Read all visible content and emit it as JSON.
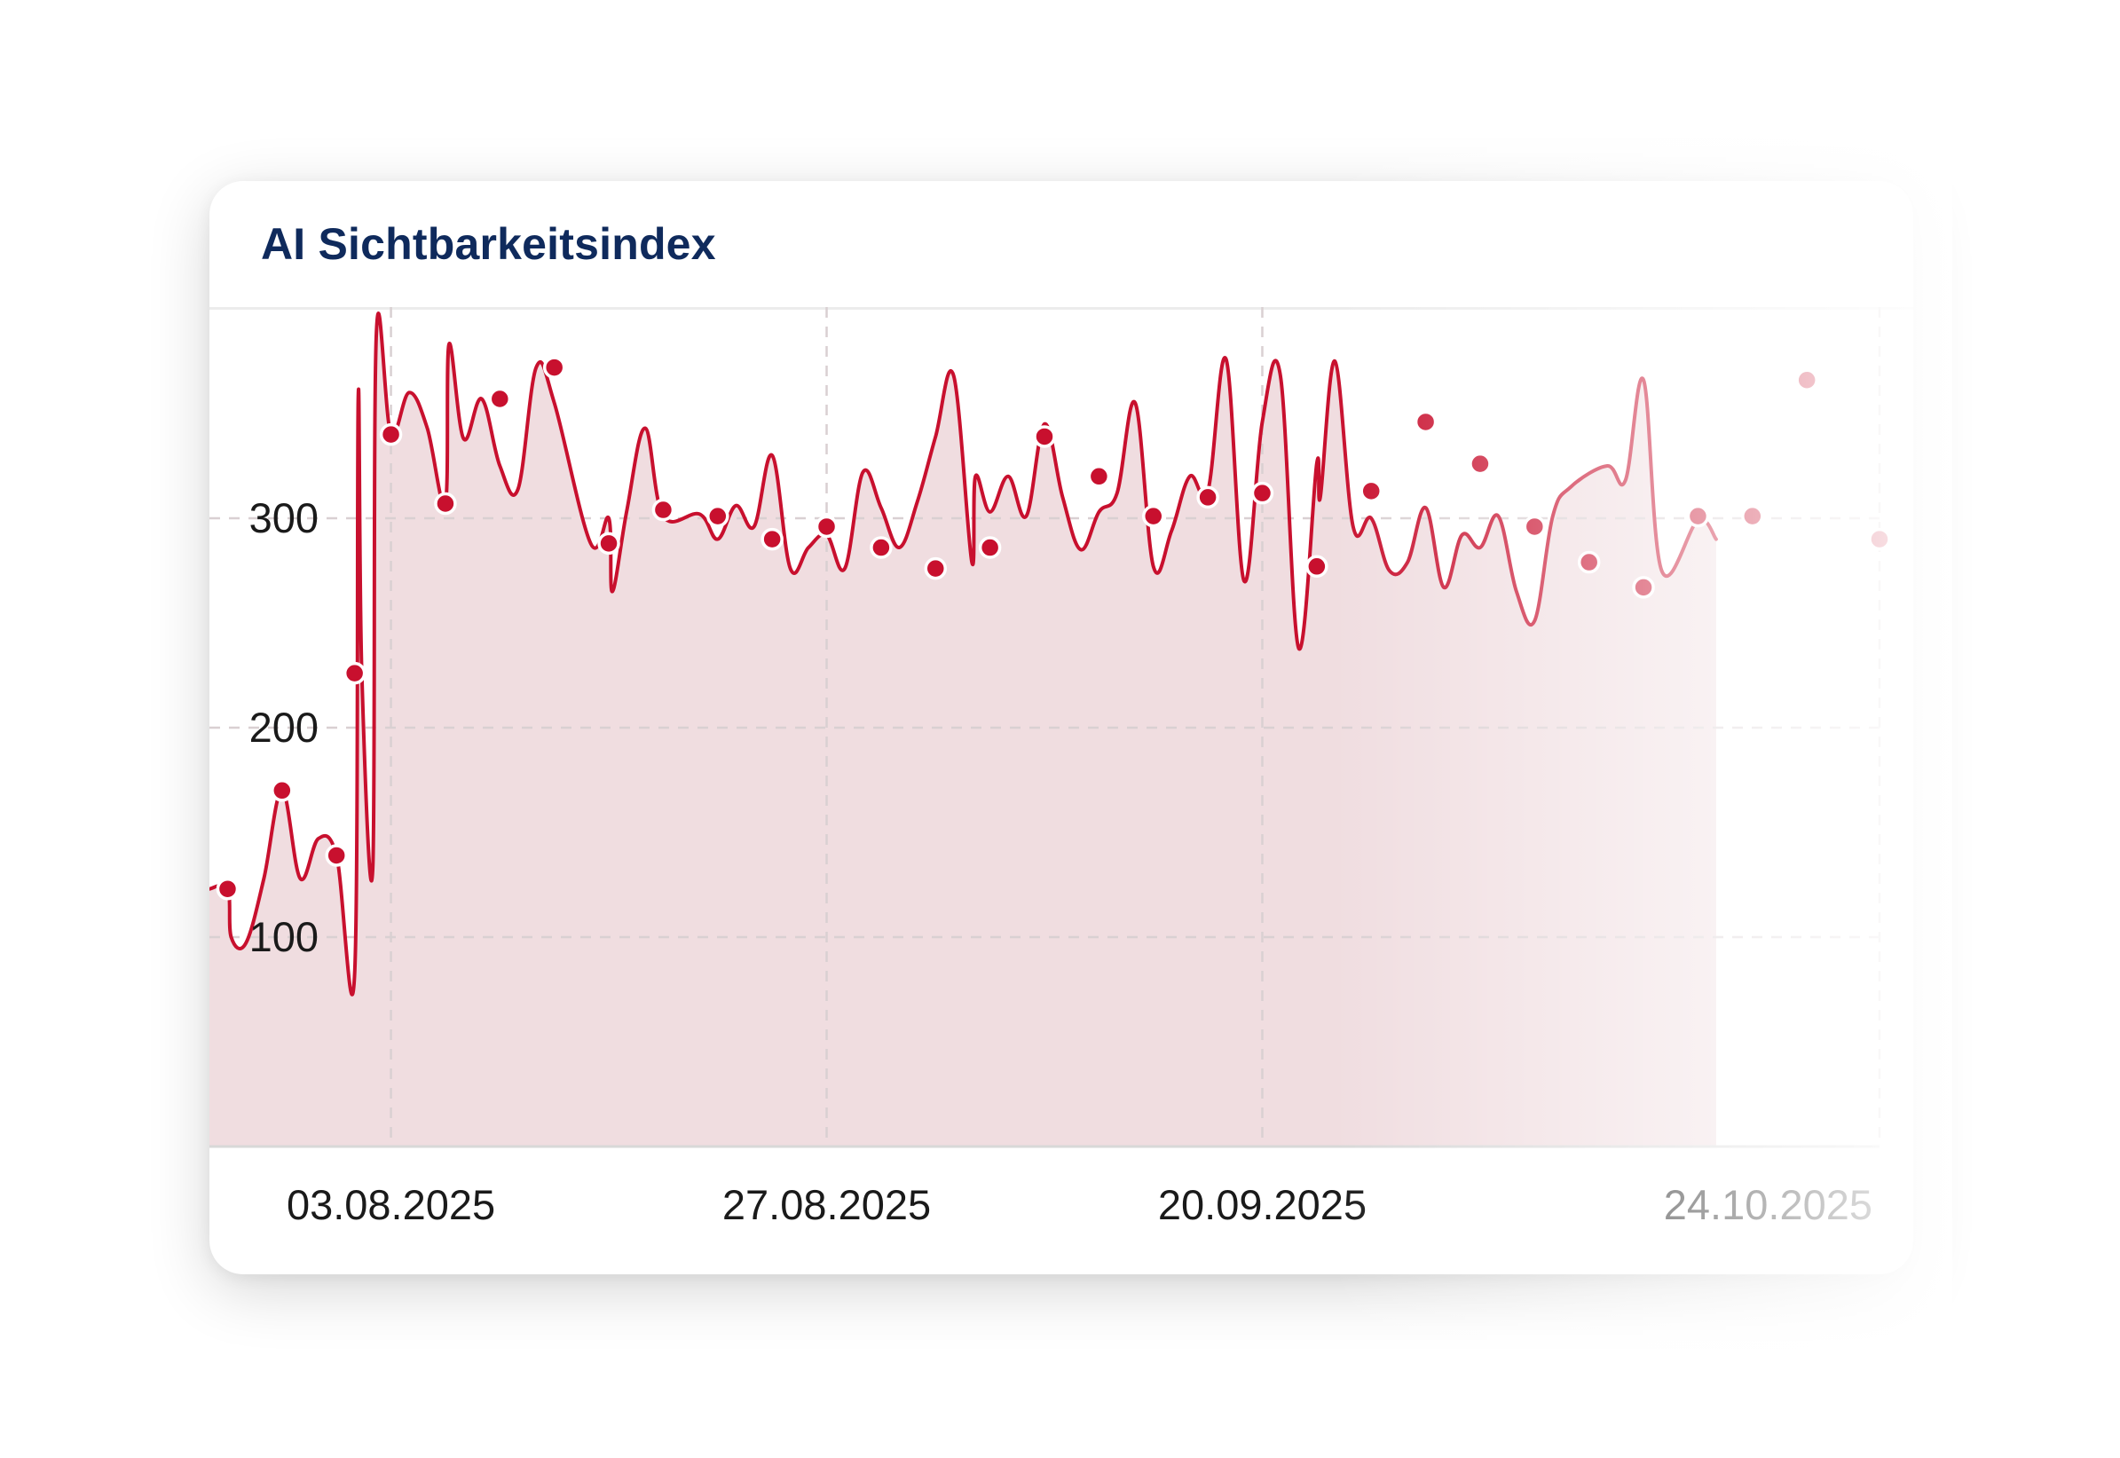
{
  "card": {
    "title": "AI Sichtbarkeitsindex"
  },
  "colors": {
    "line": "#c8102e",
    "area": "#f0dde0",
    "grid": "#d9d0d2",
    "title": "#0f2a5c",
    "card_background": "#ffffff"
  },
  "chart_data": {
    "type": "area",
    "title": "AI Sichtbarkeitsindex",
    "xlabel": "",
    "ylabel": "",
    "grid": true,
    "x_is_date": true,
    "x_range": [
      "2025-07-24",
      "2025-10-24"
    ],
    "ylim": [
      0,
      400
    ],
    "yticks": [
      100,
      200,
      300
    ],
    "xtick_labels": [
      "03.08.2025",
      "27.08.2025",
      "20.09.2025",
      "24.10.2025"
    ],
    "xtick_dates": [
      "2025-08-03",
      "2025-08-27",
      "2025-09-20",
      "2025-10-24"
    ],
    "series": [
      {
        "marker_dates": [
          "2025-07-25",
          "2025-07-28",
          "2025-07-31",
          "2025-08-01",
          "2025-08-03",
          "2025-08-06",
          "2025-08-09",
          "2025-08-12",
          "2025-08-15",
          "2025-08-18",
          "2025-08-21",
          "2025-08-24",
          "2025-08-27",
          "2025-08-30",
          "2025-09-02",
          "2025-09-05",
          "2025-09-08",
          "2025-09-11",
          "2025-09-14",
          "2025-09-17",
          "2025-09-20",
          "2025-09-23",
          "2025-09-26",
          "2025-09-29",
          "2025-10-02",
          "2025-10-05",
          "2025-10-08",
          "2025-10-11",
          "2025-10-14",
          "2025-10-17",
          "2025-10-20",
          "2025-10-24"
        ],
        "marker_values": [
          123,
          170,
          139,
          226,
          340,
          307,
          357,
          372,
          288,
          304,
          301,
          290,
          296,
          286,
          276,
          286,
          339,
          320,
          301,
          310,
          312,
          277,
          313,
          346,
          326,
          296,
          279,
          267,
          301,
          301,
          366,
          290
        ],
        "line": [
          [
            "2025-07-24",
            123
          ],
          [
            "2025-07-25",
            123
          ],
          [
            "2025-07-25",
            100
          ],
          [
            "2025-07-26",
            97
          ],
          [
            "2025-07-27",
            128
          ],
          [
            "2025-07-28",
            170
          ],
          [
            "2025-07-29",
            128
          ],
          [
            "2025-07-30",
            147
          ],
          [
            "2025-07-31",
            139
          ],
          [
            "2025-08-01",
            83
          ],
          [
            "2025-08-01",
            358
          ],
          [
            "2025-08-01",
            226
          ],
          [
            "2025-08-02",
            133
          ],
          [
            "2025-08-02",
            388
          ],
          [
            "2025-08-03",
            340
          ],
          [
            "2025-08-04",
            360
          ],
          [
            "2025-08-05",
            343
          ],
          [
            "2025-08-06",
            307
          ],
          [
            "2025-08-06",
            383
          ],
          [
            "2025-08-07",
            338
          ],
          [
            "2025-08-08",
            357
          ],
          [
            "2025-08-09",
            325
          ],
          [
            "2025-08-10",
            314
          ],
          [
            "2025-08-11",
            372
          ],
          [
            "2025-08-12",
            355
          ],
          [
            "2025-08-14",
            288
          ],
          [
            "2025-08-15",
            300
          ],
          [
            "2025-08-15",
            265
          ],
          [
            "2025-08-16",
            304
          ],
          [
            "2025-08-17",
            343
          ],
          [
            "2025-08-18",
            301
          ],
          [
            "2025-08-20",
            302
          ],
          [
            "2025-08-21",
            290
          ],
          [
            "2025-08-22",
            306
          ],
          [
            "2025-08-23",
            296
          ],
          [
            "2025-08-24",
            330
          ],
          [
            "2025-08-25",
            276
          ],
          [
            "2025-08-26",
            286
          ],
          [
            "2025-08-27",
            292
          ],
          [
            "2025-08-28",
            276
          ],
          [
            "2025-08-29",
            322
          ],
          [
            "2025-08-30",
            305
          ],
          [
            "2025-08-31",
            286
          ],
          [
            "2025-09-01",
            308
          ],
          [
            "2025-09-02",
            339
          ],
          [
            "2025-09-03",
            368
          ],
          [
            "2025-09-04",
            279
          ],
          [
            "2025-09-04",
            320
          ],
          [
            "2025-09-05",
            303
          ],
          [
            "2025-09-06",
            320
          ],
          [
            "2025-09-07",
            301
          ],
          [
            "2025-09-08",
            345
          ],
          [
            "2025-09-09",
            310
          ],
          [
            "2025-09-10",
            285
          ],
          [
            "2025-09-11",
            303
          ],
          [
            "2025-09-12",
            312
          ],
          [
            "2025-09-13",
            355
          ],
          [
            "2025-09-14",
            277
          ],
          [
            "2025-09-15",
            294
          ],
          [
            "2025-09-16",
            320
          ],
          [
            "2025-09-17",
            313
          ],
          [
            "2025-09-18",
            376
          ],
          [
            "2025-09-19",
            270
          ],
          [
            "2025-09-20",
            346
          ],
          [
            "2025-09-21",
            368
          ],
          [
            "2025-09-22",
            238
          ],
          [
            "2025-09-23",
            326
          ],
          [
            "2025-09-23",
            310
          ],
          [
            "2025-09-24",
            375
          ],
          [
            "2025-09-25",
            296
          ],
          [
            "2025-09-26",
            300
          ],
          [
            "2025-09-27",
            275
          ],
          [
            "2025-09-28",
            279
          ],
          [
            "2025-09-29",
            305
          ],
          [
            "2025-09-30",
            267
          ],
          [
            "2025-10-01",
            292
          ],
          [
            "2025-10-02",
            286
          ],
          [
            "2025-10-03",
            301
          ],
          [
            "2025-10-04",
            265
          ],
          [
            "2025-10-05",
            251
          ],
          [
            "2025-10-06",
            301
          ],
          [
            "2025-10-07",
            315
          ],
          [
            "2025-10-09",
            325
          ],
          [
            "2025-10-10",
            318
          ],
          [
            "2025-10-11",
            366
          ],
          [
            "2025-10-12",
            275
          ],
          [
            "2025-10-14",
            299
          ],
          [
            "2025-10-15",
            290
          ]
        ]
      }
    ]
  }
}
